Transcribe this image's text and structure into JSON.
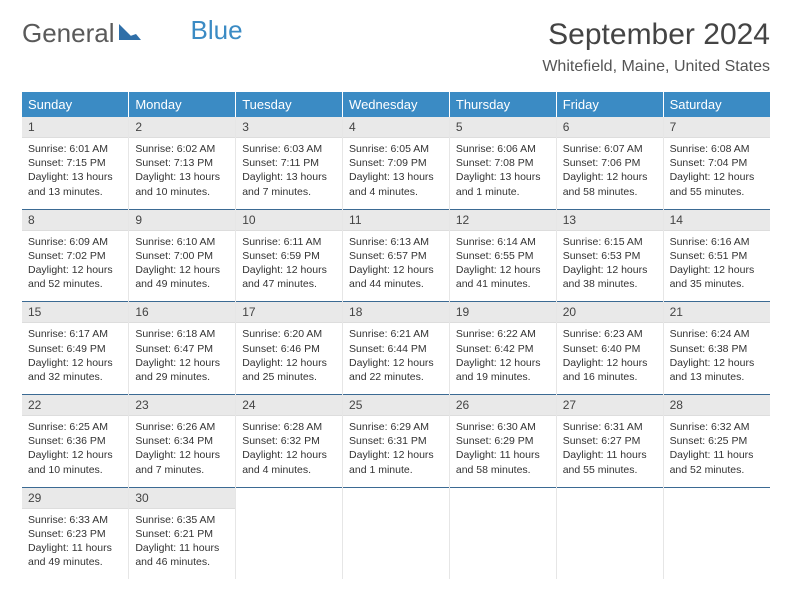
{
  "logo": {
    "general": "General",
    "blue": "Blue"
  },
  "title": "September 2024",
  "location": "Whitefield, Maine, United States",
  "colors": {
    "header_bg": "#3b8bc4",
    "header_text": "#ffffff",
    "row_sep": "#3b6a93",
    "daynum_bg": "#e9e9e9",
    "body_text": "#333333"
  },
  "weekdays": [
    "Sunday",
    "Monday",
    "Tuesday",
    "Wednesday",
    "Thursday",
    "Friday",
    "Saturday"
  ],
  "weeks": [
    [
      {
        "n": "1",
        "sr": "Sunrise: 6:01 AM",
        "ss": "Sunset: 7:15 PM",
        "dl": "Daylight: 13 hours and 13 minutes."
      },
      {
        "n": "2",
        "sr": "Sunrise: 6:02 AM",
        "ss": "Sunset: 7:13 PM",
        "dl": "Daylight: 13 hours and 10 minutes."
      },
      {
        "n": "3",
        "sr": "Sunrise: 6:03 AM",
        "ss": "Sunset: 7:11 PM",
        "dl": "Daylight: 13 hours and 7 minutes."
      },
      {
        "n": "4",
        "sr": "Sunrise: 6:05 AM",
        "ss": "Sunset: 7:09 PM",
        "dl": "Daylight: 13 hours and 4 minutes."
      },
      {
        "n": "5",
        "sr": "Sunrise: 6:06 AM",
        "ss": "Sunset: 7:08 PM",
        "dl": "Daylight: 13 hours and 1 minute."
      },
      {
        "n": "6",
        "sr": "Sunrise: 6:07 AM",
        "ss": "Sunset: 7:06 PM",
        "dl": "Daylight: 12 hours and 58 minutes."
      },
      {
        "n": "7",
        "sr": "Sunrise: 6:08 AM",
        "ss": "Sunset: 7:04 PM",
        "dl": "Daylight: 12 hours and 55 minutes."
      }
    ],
    [
      {
        "n": "8",
        "sr": "Sunrise: 6:09 AM",
        "ss": "Sunset: 7:02 PM",
        "dl": "Daylight: 12 hours and 52 minutes."
      },
      {
        "n": "9",
        "sr": "Sunrise: 6:10 AM",
        "ss": "Sunset: 7:00 PM",
        "dl": "Daylight: 12 hours and 49 minutes."
      },
      {
        "n": "10",
        "sr": "Sunrise: 6:11 AM",
        "ss": "Sunset: 6:59 PM",
        "dl": "Daylight: 12 hours and 47 minutes."
      },
      {
        "n": "11",
        "sr": "Sunrise: 6:13 AM",
        "ss": "Sunset: 6:57 PM",
        "dl": "Daylight: 12 hours and 44 minutes."
      },
      {
        "n": "12",
        "sr": "Sunrise: 6:14 AM",
        "ss": "Sunset: 6:55 PM",
        "dl": "Daylight: 12 hours and 41 minutes."
      },
      {
        "n": "13",
        "sr": "Sunrise: 6:15 AM",
        "ss": "Sunset: 6:53 PM",
        "dl": "Daylight: 12 hours and 38 minutes."
      },
      {
        "n": "14",
        "sr": "Sunrise: 6:16 AM",
        "ss": "Sunset: 6:51 PM",
        "dl": "Daylight: 12 hours and 35 minutes."
      }
    ],
    [
      {
        "n": "15",
        "sr": "Sunrise: 6:17 AM",
        "ss": "Sunset: 6:49 PM",
        "dl": "Daylight: 12 hours and 32 minutes."
      },
      {
        "n": "16",
        "sr": "Sunrise: 6:18 AM",
        "ss": "Sunset: 6:47 PM",
        "dl": "Daylight: 12 hours and 29 minutes."
      },
      {
        "n": "17",
        "sr": "Sunrise: 6:20 AM",
        "ss": "Sunset: 6:46 PM",
        "dl": "Daylight: 12 hours and 25 minutes."
      },
      {
        "n": "18",
        "sr": "Sunrise: 6:21 AM",
        "ss": "Sunset: 6:44 PM",
        "dl": "Daylight: 12 hours and 22 minutes."
      },
      {
        "n": "19",
        "sr": "Sunrise: 6:22 AM",
        "ss": "Sunset: 6:42 PM",
        "dl": "Daylight: 12 hours and 19 minutes."
      },
      {
        "n": "20",
        "sr": "Sunrise: 6:23 AM",
        "ss": "Sunset: 6:40 PM",
        "dl": "Daylight: 12 hours and 16 minutes."
      },
      {
        "n": "21",
        "sr": "Sunrise: 6:24 AM",
        "ss": "Sunset: 6:38 PM",
        "dl": "Daylight: 12 hours and 13 minutes."
      }
    ],
    [
      {
        "n": "22",
        "sr": "Sunrise: 6:25 AM",
        "ss": "Sunset: 6:36 PM",
        "dl": "Daylight: 12 hours and 10 minutes."
      },
      {
        "n": "23",
        "sr": "Sunrise: 6:26 AM",
        "ss": "Sunset: 6:34 PM",
        "dl": "Daylight: 12 hours and 7 minutes."
      },
      {
        "n": "24",
        "sr": "Sunrise: 6:28 AM",
        "ss": "Sunset: 6:32 PM",
        "dl": "Daylight: 12 hours and 4 minutes."
      },
      {
        "n": "25",
        "sr": "Sunrise: 6:29 AM",
        "ss": "Sunset: 6:31 PM",
        "dl": "Daylight: 12 hours and 1 minute."
      },
      {
        "n": "26",
        "sr": "Sunrise: 6:30 AM",
        "ss": "Sunset: 6:29 PM",
        "dl": "Daylight: 11 hours and 58 minutes."
      },
      {
        "n": "27",
        "sr": "Sunrise: 6:31 AM",
        "ss": "Sunset: 6:27 PM",
        "dl": "Daylight: 11 hours and 55 minutes."
      },
      {
        "n": "28",
        "sr": "Sunrise: 6:32 AM",
        "ss": "Sunset: 6:25 PM",
        "dl": "Daylight: 11 hours and 52 minutes."
      }
    ],
    [
      {
        "n": "29",
        "sr": "Sunrise: 6:33 AM",
        "ss": "Sunset: 6:23 PM",
        "dl": "Daylight: 11 hours and 49 minutes."
      },
      {
        "n": "30",
        "sr": "Sunrise: 6:35 AM",
        "ss": "Sunset: 6:21 PM",
        "dl": "Daylight: 11 hours and 46 minutes."
      },
      null,
      null,
      null,
      null,
      null
    ]
  ]
}
